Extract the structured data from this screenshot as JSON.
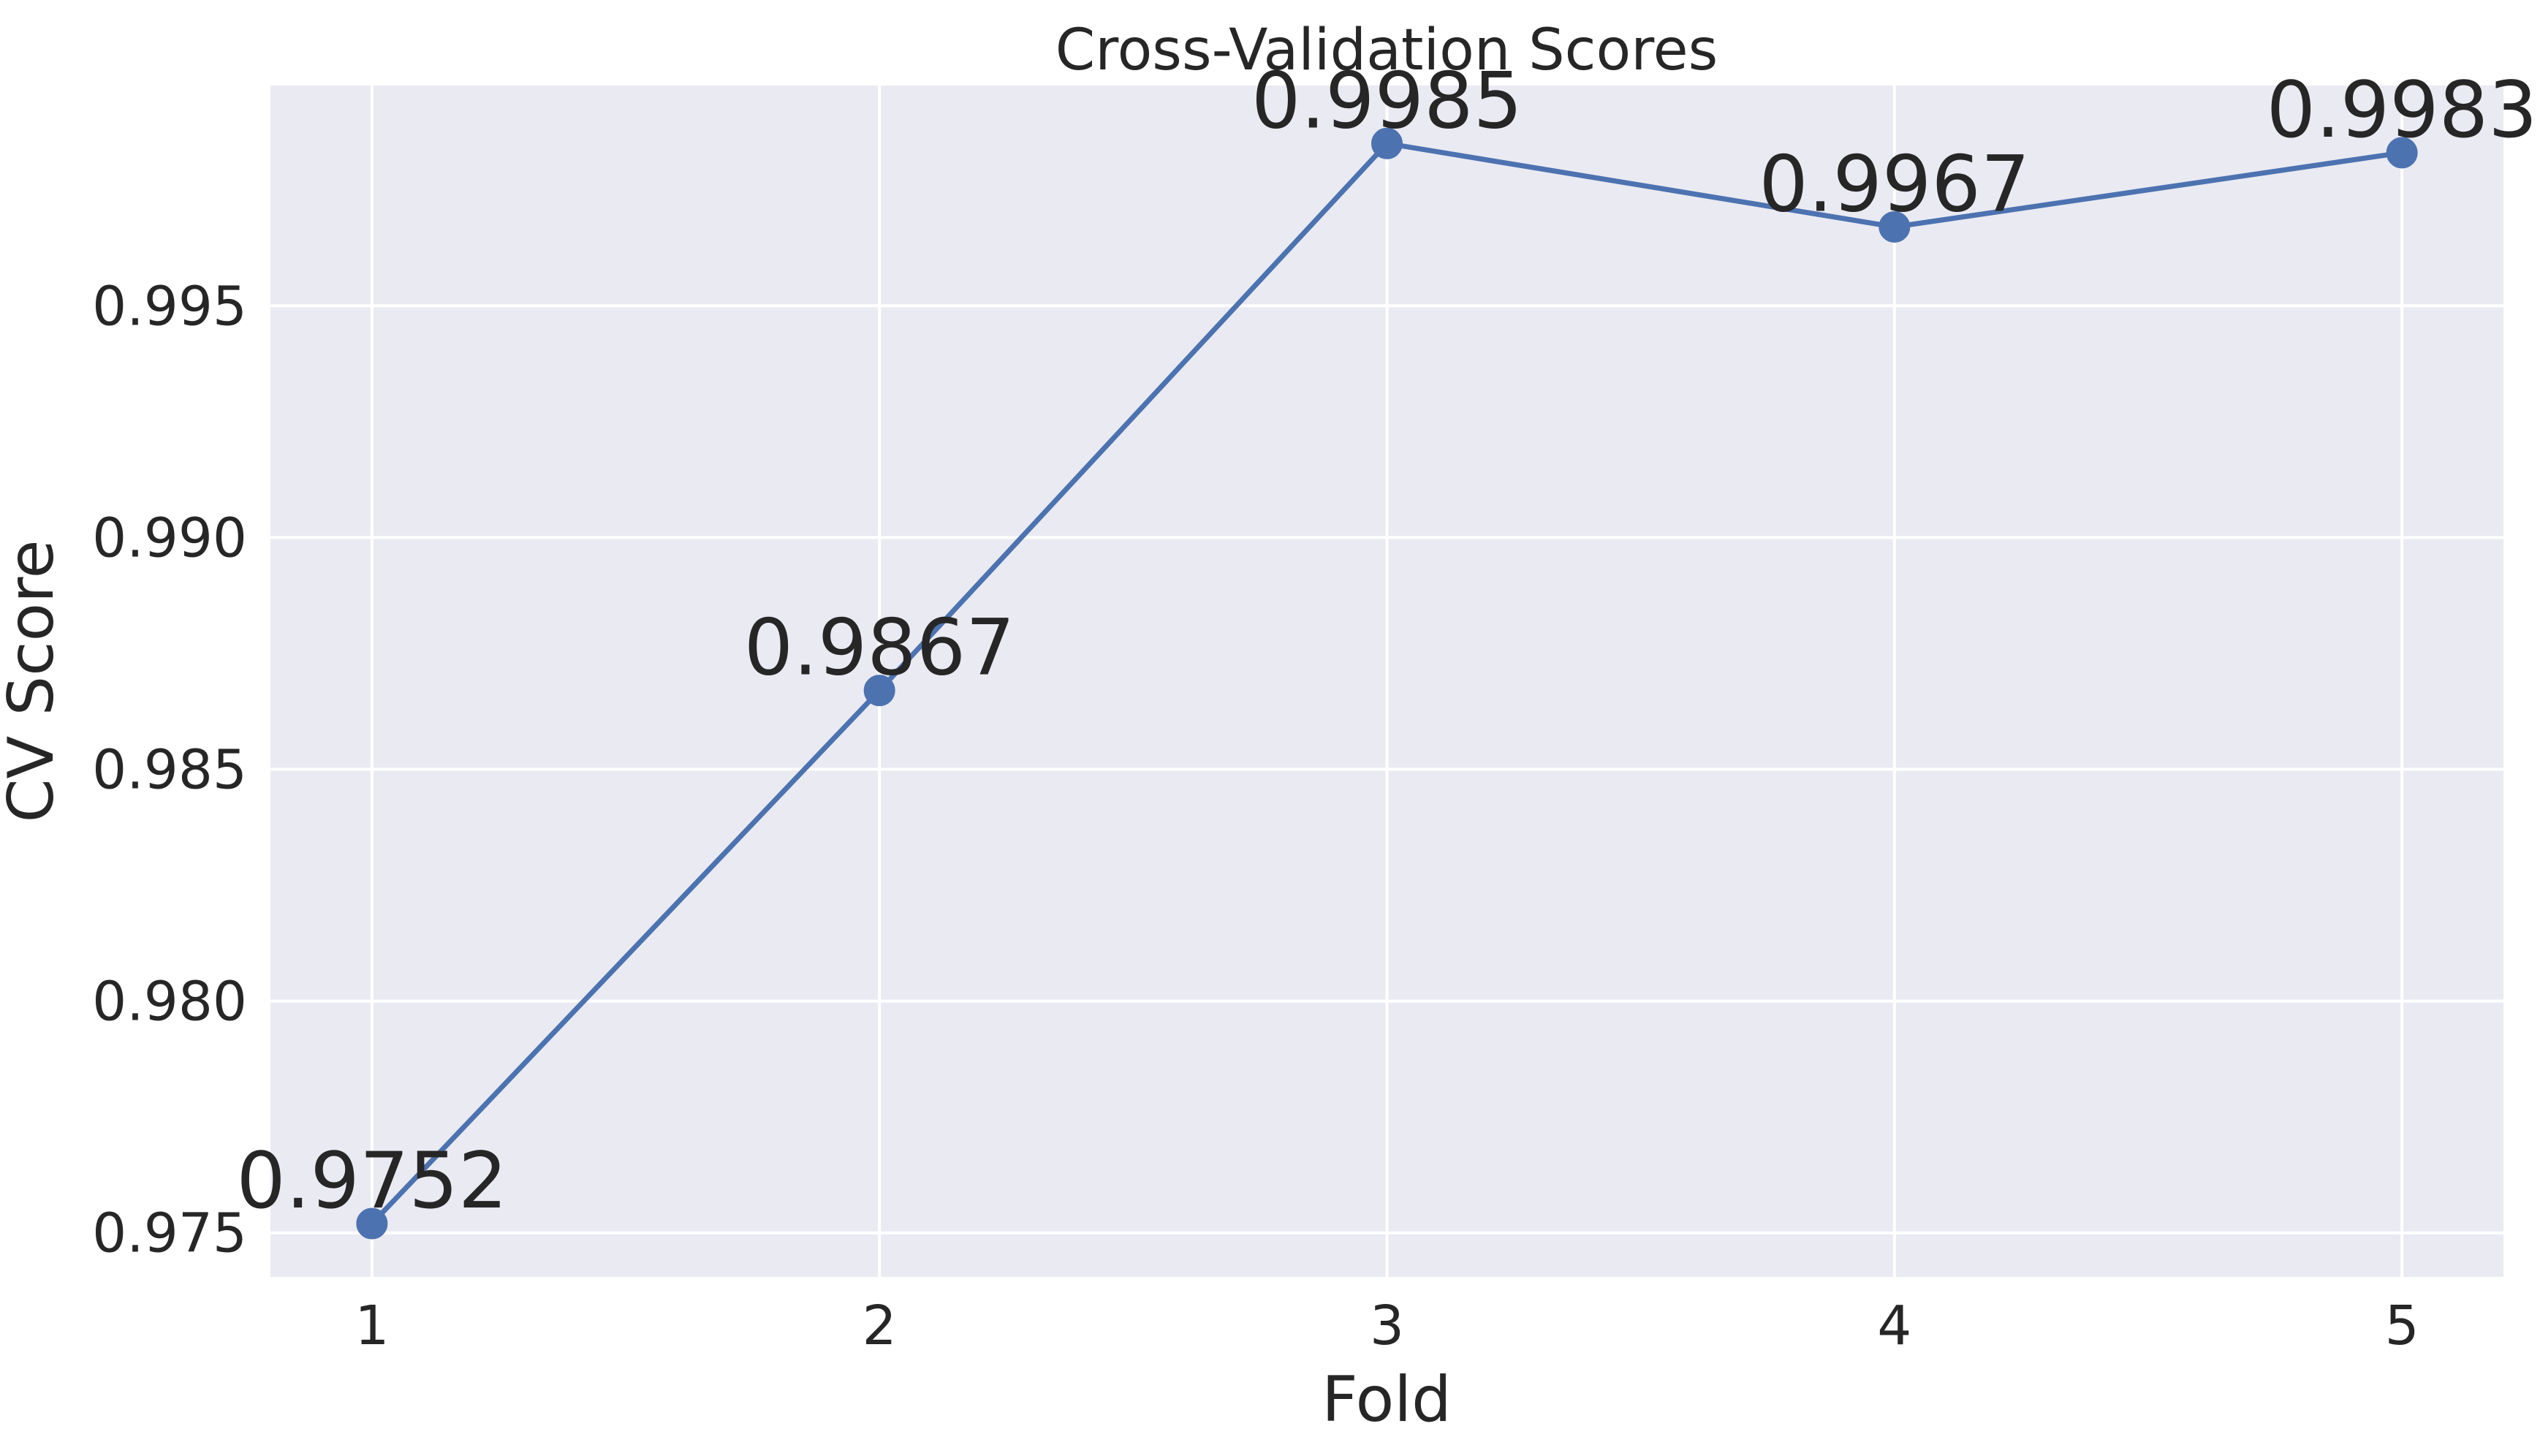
{
  "chart_data": {
    "type": "line",
    "title": "Cross-Validation Scores",
    "xlabel": "Fold",
    "ylabel": "CV Score",
    "x": [
      1,
      2,
      3,
      4,
      5
    ],
    "xticks": [
      "1",
      "2",
      "3",
      "4",
      "5"
    ],
    "xlim": [
      0.8,
      5.2
    ],
    "ylim": [
      0.97405,
      0.99975
    ],
    "yticks": [
      "0.975",
      "0.980",
      "0.985",
      "0.990",
      "0.995"
    ],
    "ytick_values": [
      0.975,
      0.98,
      0.985,
      0.99,
      0.995
    ],
    "series": [
      {
        "values": [
          0.9752,
          0.9867,
          0.9985,
          0.9967,
          0.9983
        ],
        "labels": [
          "0.9752",
          "0.9867",
          "0.9985",
          "0.9967",
          "0.9983"
        ],
        "color": "#4c72b0",
        "marker": "circle"
      }
    ],
    "grid": true,
    "background_color": "#eaeaf2",
    "legend": "none"
  }
}
